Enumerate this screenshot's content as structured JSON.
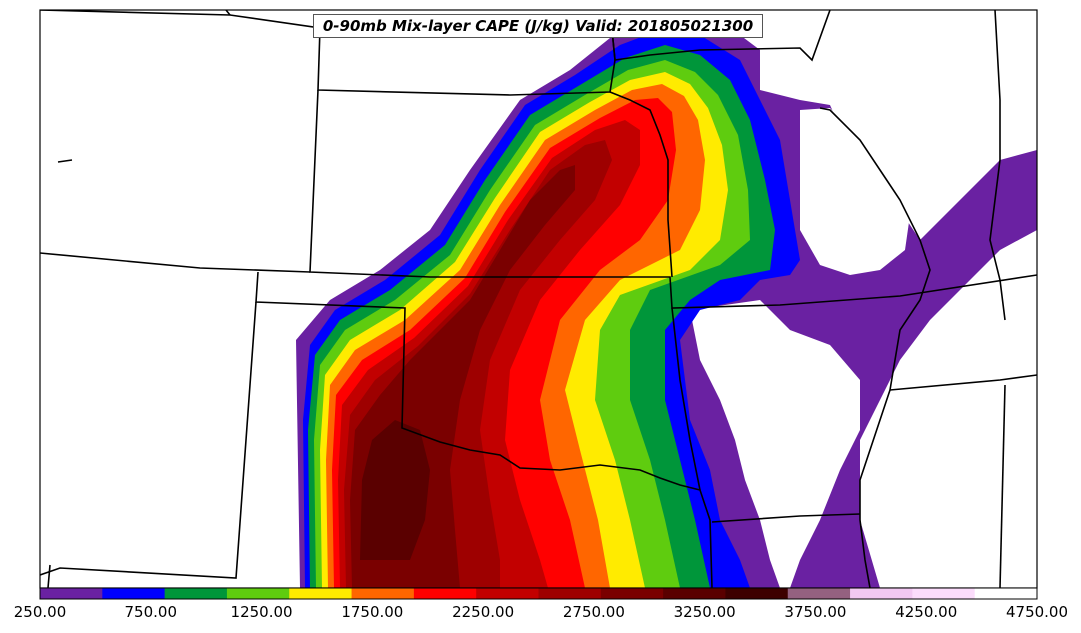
{
  "title": "0-90mb Mix-layer CAPE (J/kg) Valid: 201805021300",
  "colorbar": {
    "colors": [
      "#6a21a2",
      "#0000ff",
      "#00963a",
      "#5fcc0f",
      "#ffeb00",
      "#ff6600",
      "#ff0000",
      "#c20000",
      "#9e0000",
      "#7a0000",
      "#5a0000",
      "#3d0000",
      "#946180",
      "#f2c8f2",
      "#fbdcfb",
      "#ffffff"
    ],
    "labels": [
      "250.00",
      "750.00",
      "1250.00",
      "1750.00",
      "2250.00",
      "2750.00",
      "3250.00",
      "3750.00",
      "4250.00",
      "4750.00"
    ],
    "min": 250,
    "max": 4750,
    "step": 250
  }
}
